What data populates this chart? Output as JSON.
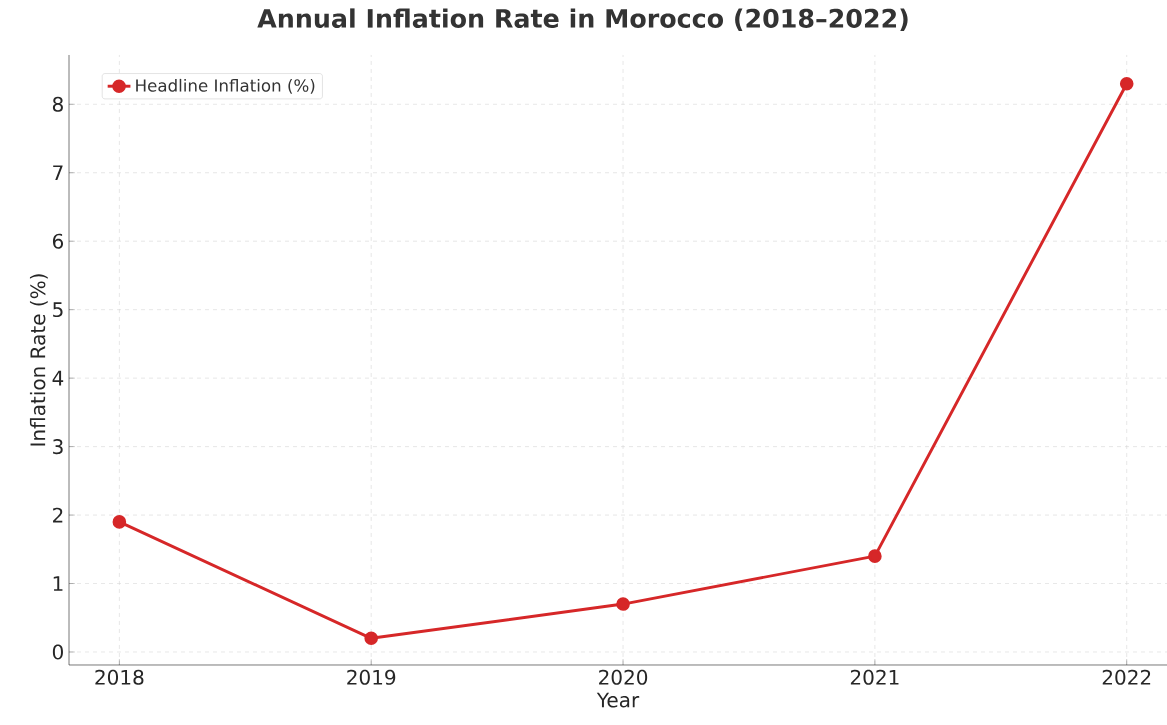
{
  "chart_data": {
    "type": "line",
    "title": "Annual Inflation Rate in Morocco (2018–2022)",
    "xlabel": "Year",
    "ylabel": "Inflation Rate (%)",
    "x": [
      2018,
      2019,
      2020,
      2021,
      2022
    ],
    "series": [
      {
        "name": "Headline Inflation (%)",
        "color": "#d62728",
        "values": [
          1.9,
          0.2,
          0.7,
          1.4,
          8.3
        ]
      }
    ],
    "xlim": [
      2017.8,
      2022.16
    ],
    "xticks": [
      2018,
      2019,
      2020,
      2021,
      2022
    ],
    "ylim": [
      -0.19,
      8.72
    ],
    "yticks": [
      0,
      1,
      2,
      3,
      4,
      5,
      6,
      7,
      8
    ],
    "grid": true,
    "legend": "top left",
    "marker": "circle",
    "line_style": "solid"
  }
}
